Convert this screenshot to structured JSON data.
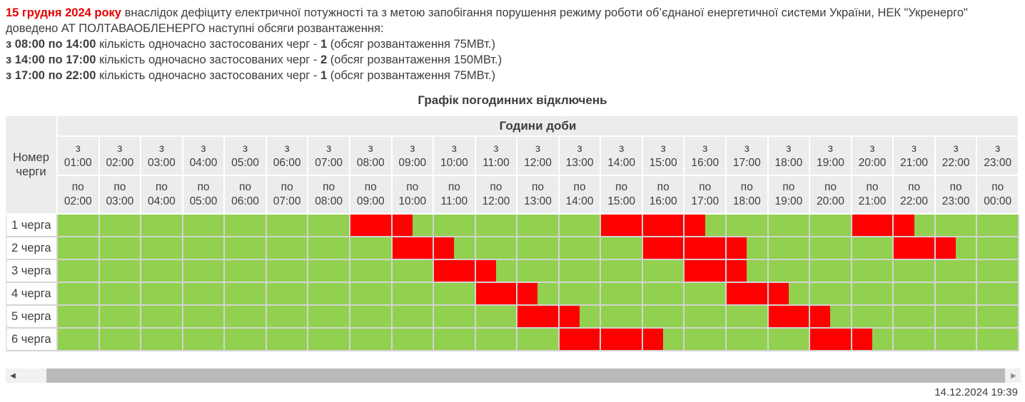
{
  "announcement": {
    "date_bold_red": "15 грудня 2024 року",
    "text_after_date": "внаслідок дефіциту електричної потужності та з метою запобігання порушення режиму роботи об’єднаної енергетичної системи України, НЕК \"Укренерго\" доведено АТ ПОЛТАВАОБЛЕНЕРГО наступні обсяги розвантаження:",
    "load_lines": [
      {
        "period": "з 08:00 по 14:00",
        "text": "кількість одночасно застосованих черг -",
        "count": "1",
        "volume": "(обсяг розвантаження 75МВт.)"
      },
      {
        "period": "з 14:00 по 17:00",
        "text": "кількість одночасно застосованих черг -",
        "count": "2",
        "volume": "(обсяг розвантаження 150МВт.)"
      },
      {
        "period": "з 17:00 по 22:00",
        "text": "кількість одночасно застосованих черг -",
        "count": "1",
        "volume": "(обсяг розвантаження 75МВт.)"
      }
    ]
  },
  "chart_data": {
    "type": "heatmap",
    "title": "Графік погодинних відключень",
    "top_header": "Години доби",
    "corner_header_line1": "Номер",
    "corner_header_line2": "черги",
    "col_from_prefix": "з",
    "col_to_prefix": "по",
    "axis_start_hour": 1,
    "columns": [
      {
        "from": "01:00",
        "to": "02:00"
      },
      {
        "from": "02:00",
        "to": "03:00"
      },
      {
        "from": "03:00",
        "to": "04:00"
      },
      {
        "from": "04:00",
        "to": "05:00"
      },
      {
        "from": "05:00",
        "to": "06:00"
      },
      {
        "from": "06:00",
        "to": "07:00"
      },
      {
        "from": "07:00",
        "to": "08:00"
      },
      {
        "from": "08:00",
        "to": "09:00"
      },
      {
        "from": "09:00",
        "to": "10:00"
      },
      {
        "from": "10:00",
        "to": "11:00"
      },
      {
        "from": "11:00",
        "to": "12:00"
      },
      {
        "from": "12:00",
        "to": "13:00"
      },
      {
        "from": "13:00",
        "to": "14:00"
      },
      {
        "from": "14:00",
        "to": "15:00"
      },
      {
        "from": "15:00",
        "to": "16:00"
      },
      {
        "from": "16:00",
        "to": "17:00"
      },
      {
        "from": "17:00",
        "to": "18:00"
      },
      {
        "from": "18:00",
        "to": "19:00"
      },
      {
        "from": "19:00",
        "to": "20:00"
      },
      {
        "from": "20:00",
        "to": "21:00"
      },
      {
        "from": "21:00",
        "to": "22:00"
      },
      {
        "from": "22:00",
        "to": "23:00"
      },
      {
        "from": "23:00",
        "to": "00:00"
      }
    ],
    "rows": [
      {
        "label": "1 черга",
        "outages": [
          [
            "08:00",
            "09:30"
          ],
          [
            "14:00",
            "16:30"
          ],
          [
            "20:00",
            "21:30"
          ]
        ]
      },
      {
        "label": "2 черга",
        "outages": [
          [
            "09:00",
            "10:30"
          ],
          [
            "15:00",
            "17:30"
          ],
          [
            "21:00",
            "22:30"
          ]
        ]
      },
      {
        "label": "3 черга",
        "outages": [
          [
            "10:00",
            "11:30"
          ],
          [
            "16:00",
            "17:30"
          ]
        ]
      },
      {
        "label": "4 черга",
        "outages": [
          [
            "11:00",
            "12:30"
          ],
          [
            "17:00",
            "18:30"
          ]
        ]
      },
      {
        "label": "5 черга",
        "outages": [
          [
            "12:00",
            "13:30"
          ],
          [
            "18:00",
            "19:30"
          ]
        ]
      },
      {
        "label": "6 черга",
        "outages": [
          [
            "13:00",
            "15:30"
          ],
          [
            "19:00",
            "20:30"
          ]
        ]
      }
    ],
    "colors": {
      "power_on": "#92d04f",
      "power_off": "#fe0000",
      "header_bg": "#ebecee"
    },
    "legend_position": "none",
    "grid": true
  },
  "scrollbar": {
    "left_arrow": "◀",
    "right_arrow": "▶"
  },
  "footer": {
    "timestamp": "14.12.2024 19:39"
  }
}
